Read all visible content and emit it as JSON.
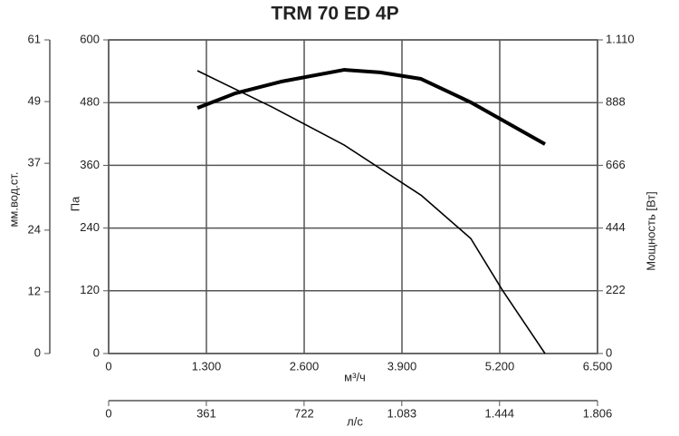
{
  "chart_data": {
    "type": "line",
    "title": "TRM 70 ED 4P",
    "xlabel": "м³/ч",
    "ylabel": "Па",
    "y2label": "Мощность [Вт]",
    "xlim": [
      0,
      6500
    ],
    "xticks": [
      0,
      {
        "value": 1300,
        "label": "1.300"
      },
      {
        "value": 2600,
        "label": "2.600"
      },
      {
        "value": 3900,
        "label": "3.900"
      },
      {
        "value": 5200,
        "label": "5.200"
      },
      {
        "value": 6500,
        "label": "6.500"
      }
    ],
    "ylim": [
      0,
      600
    ],
    "yticks": [
      0,
      120,
      240,
      360,
      480,
      600
    ],
    "y2lim": [
      0,
      1110
    ],
    "y2ticks": [
      0,
      222,
      444,
      666,
      888,
      {
        "value": 1110,
        "label": "1.110"
      }
    ],
    "y3label": "мм.вод.ст.",
    "y3lim": [
      0,
      61
    ],
    "y3ticks": [
      0,
      12,
      24,
      37,
      49,
      61
    ],
    "x2label": "л/с",
    "x2lim": [
      0,
      1806
    ],
    "x2ticks": [
      0,
      361,
      722,
      {
        "value": 1083,
        "label": "1.083"
      },
      {
        "value": 1444,
        "label": "1.444"
      },
      {
        "value": 1806,
        "label": "1.806"
      }
    ],
    "grid": true,
    "series": [
      {
        "color": "#000000",
        "width": 1.6,
        "x": [
          1180,
          2167,
          3130,
          4153,
          4815,
          5236,
          5802
        ],
        "values": [
          541,
          472,
          399,
          303,
          220,
          121,
          0
        ]
      },
      {
        "color": "#000000",
        "width": 4,
        "axis": "y2",
        "x": [
          1180,
          1685,
          2287,
          3130,
          3611,
          4153,
          4815,
          5802
        ],
        "values": [
          869,
          921,
          962,
          1004,
          995,
          972,
          889,
          741
        ]
      }
    ]
  }
}
